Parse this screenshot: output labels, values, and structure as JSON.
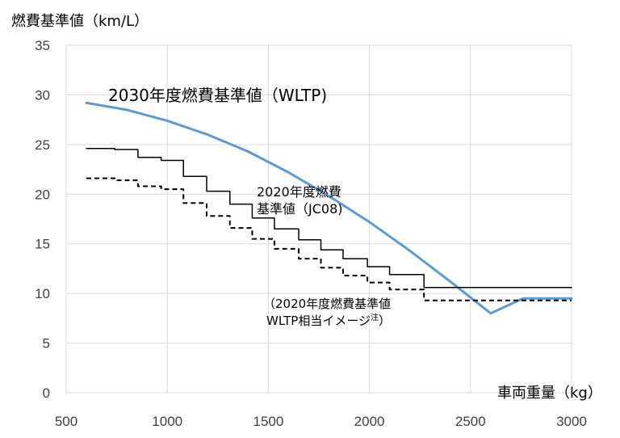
{
  "chart_data": {
    "type": "line",
    "ylabel": "燃費基準値（km/L）",
    "xlabel": "車両重量（kg）",
    "xlim": [
      500,
      3000
    ],
    "ylim": [
      0,
      35
    ],
    "x_ticks": [
      500,
      1000,
      1500,
      2000,
      2500,
      3000
    ],
    "y_ticks": [
      0,
      5,
      10,
      15,
      20,
      25,
      30,
      35
    ],
    "grid": "vertical and horizontal",
    "legend": "none (inline annotations)",
    "series": [
      {
        "name": "2030年度燃費基準値（WLTP）",
        "style": "solid",
        "color": "#5b9bd5",
        "width": 3,
        "x": [
          600,
          800,
          1000,
          1200,
          1400,
          1600,
          1800,
          2000,
          2200,
          2400,
          2600,
          2760,
          3000
        ],
        "y": [
          29.2,
          28.5,
          27.4,
          26.0,
          24.3,
          22.2,
          19.8,
          17.2,
          14.3,
          11.2,
          8.0,
          9.5,
          9.5
        ]
      },
      {
        "name": "2020年度燃費基準値（JC08）",
        "style": "solid",
        "color": "#000000",
        "width": 1.5,
        "x": [
          600,
          740,
          740,
          855,
          855,
          970,
          970,
          1080,
          1080,
          1195,
          1195,
          1310,
          1310,
          1420,
          1420,
          1530,
          1530,
          1650,
          1650,
          1760,
          1760,
          1870,
          1870,
          1990,
          1990,
          2100,
          2100,
          2270,
          2270,
          3000
        ],
        "y": [
          24.6,
          24.6,
          24.5,
          24.5,
          23.7,
          23.7,
          23.4,
          23.4,
          21.8,
          21.8,
          20.3,
          20.3,
          19.0,
          19.0,
          17.6,
          17.6,
          16.5,
          16.5,
          15.4,
          15.4,
          14.4,
          14.4,
          13.5,
          13.5,
          12.7,
          12.7,
          11.9,
          11.9,
          10.6,
          10.6
        ]
      },
      {
        "name": "（2020年度燃費基準値WLTP相当イメージ注）",
        "style": "dashed",
        "color": "#000000",
        "width": 2,
        "x": [
          600,
          740,
          740,
          855,
          855,
          970,
          970,
          1080,
          1080,
          1195,
          1195,
          1310,
          1310,
          1420,
          1420,
          1530,
          1530,
          1650,
          1650,
          1760,
          1760,
          1870,
          1870,
          1990,
          1990,
          2100,
          2100,
          2270,
          2270,
          3000
        ],
        "y": [
          21.6,
          21.6,
          21.4,
          21.4,
          20.8,
          20.8,
          20.5,
          20.5,
          19.1,
          19.1,
          17.8,
          17.8,
          16.6,
          16.6,
          15.5,
          15.5,
          14.5,
          14.5,
          13.5,
          13.5,
          12.6,
          12.6,
          11.8,
          11.8,
          11.1,
          11.1,
          10.4,
          10.4,
          9.3,
          9.3
        ]
      }
    ],
    "annotations": {
      "wltp": "2030年度燃費基準値（WLTP)",
      "jc08_line1": "2020年度燃費",
      "jc08_line2": "基準値（JC08)",
      "image_line1": "（2020年度燃費基準値",
      "image_line2": "WLTP相当イメージ",
      "image_note": "注",
      "image_close": "）"
    }
  }
}
